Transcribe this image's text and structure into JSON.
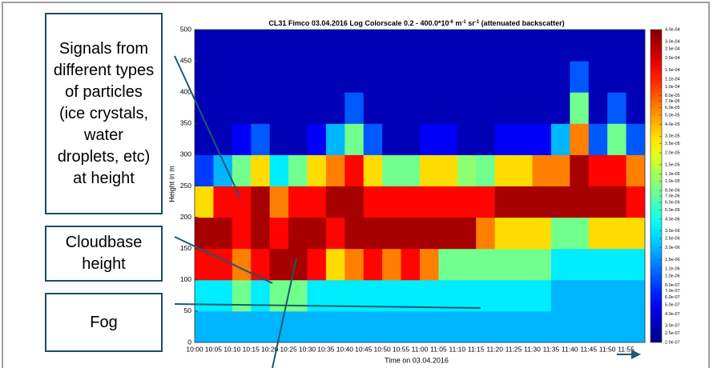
{
  "chart_data": {
    "type": "heatmap",
    "title": [
      "CL31 Fimco  03.04.2016  Log Colorscale 0.2 - 400.0*10",
      "-6",
      " m",
      "-1",
      " sr",
      "-1",
      "  (attenuated backscatter)"
    ],
    "x_label": "Time on 03.04.2016",
    "y_label": "Height in m",
    "categories": [
      "10:00",
      "10:05",
      "10:10",
      "10:15",
      "10:20",
      "10:25",
      "10:30",
      "10:35",
      "10:40",
      "10:45",
      "10:50",
      "10:55",
      "11:00",
      "11:05",
      "11:10",
      "11:15",
      "11:20",
      "11:25",
      "11:30",
      "11:35",
      "11:40",
      "11:45",
      "11:50",
      "11:55"
    ],
    "ybins": [
      0,
      50,
      100,
      150,
      200,
      250,
      300,
      350,
      400,
      450,
      500
    ],
    "ylim": [
      0,
      500
    ],
    "yticks": [
      0,
      50,
      100,
      150,
      200,
      250,
      300,
      350,
      400,
      450,
      500
    ],
    "values": [
      [
        2e-06,
        2e-06,
        2e-06,
        2e-06,
        2e-06,
        2e-06,
        2e-06,
        2e-06,
        2e-06,
        2e-06,
        2e-06,
        2e-06,
        2e-06,
        2e-06,
        2e-06,
        2e-06,
        2e-06,
        2e-06,
        2e-06,
        2e-06,
        2e-06,
        2e-06,
        2e-06,
        2e-06
      ],
      [
        3e-06,
        3e-06,
        8e-06,
        3e-06,
        8e-06,
        8e-06,
        3e-06,
        3e-06,
        3e-06,
        3e-06,
        3e-06,
        3e-06,
        3e-06,
        3e-06,
        3e-06,
        3e-06,
        3e-06,
        3e-06,
        3e-06,
        2e-06,
        2e-06,
        2e-06,
        2e-06,
        2e-06
      ],
      [
        0.00015,
        0.00015,
        6e-05,
        0.00015,
        0.0003,
        0.0003,
        0.00015,
        3e-05,
        6e-05,
        0.00015,
        6e-05,
        0.00015,
        6e-05,
        8e-06,
        8e-06,
        8e-06,
        8e-06,
        8e-06,
        8e-06,
        3e-06,
        3e-06,
        3e-06,
        3e-06,
        3e-06
      ],
      [
        0.0003,
        0.0003,
        0.00015,
        0.0003,
        0.00015,
        0.0003,
        0.0003,
        0.00015,
        0.0003,
        0.0003,
        0.0003,
        0.0003,
        0.0003,
        0.0003,
        0.0003,
        6e-05,
        3e-05,
        3e-05,
        3e-05,
        8e-06,
        8e-06,
        3e-05,
        3e-05,
        3e-05
      ],
      [
        3e-05,
        0.00015,
        0.00015,
        0.0003,
        6e-05,
        0.00015,
        0.00015,
        0.0003,
        0.0003,
        0.00015,
        0.00015,
        0.00015,
        0.00015,
        0.00015,
        0.00015,
        0.00015,
        0.0003,
        0.0003,
        0.0003,
        0.0003,
        0.0003,
        0.0003,
        0.0003,
        0.00015
      ],
      [
        8e-07,
        2e-06,
        8e-06,
        3e-05,
        3e-06,
        8e-06,
        3e-05,
        6e-05,
        0.00015,
        3e-05,
        8e-06,
        8e-06,
        3e-05,
        3e-05,
        1e-05,
        8e-06,
        3e-05,
        3e-05,
        6e-05,
        6e-05,
        0.0003,
        0.00015,
        0.00015,
        6e-05
      ],
      [
        3e-07,
        3e-07,
        5e-07,
        1e-06,
        3e-07,
        3e-07,
        5e-07,
        2e-06,
        8e-06,
        1e-06,
        3e-07,
        3e-07,
        5e-07,
        5e-07,
        3e-07,
        3e-07,
        5e-07,
        5e-07,
        5e-07,
        2e-06,
        6e-05,
        1e-06,
        8e-06,
        1e-06
      ],
      [
        3e-07,
        3e-07,
        3e-07,
        3e-07,
        3e-07,
        3e-07,
        3e-07,
        3e-07,
        1e-06,
        3e-07,
        3e-07,
        3e-07,
        3e-07,
        3e-07,
        3e-07,
        3e-07,
        3e-07,
        3e-07,
        3e-07,
        3e-07,
        8e-06,
        3e-07,
        1e-06,
        3e-07
      ],
      [
        3e-07,
        3e-07,
        3e-07,
        3e-07,
        3e-07,
        3e-07,
        3e-07,
        3e-07,
        3e-07,
        3e-07,
        3e-07,
        3e-07,
        3e-07,
        3e-07,
        3e-07,
        3e-07,
        3e-07,
        3e-07,
        3e-07,
        3e-07,
        1e-06,
        3e-07,
        3e-07,
        3e-07
      ],
      [
        3e-07,
        3e-07,
        3e-07,
        3e-07,
        3e-07,
        3e-07,
        3e-07,
        3e-07,
        3e-07,
        3e-07,
        3e-07,
        3e-07,
        3e-07,
        3e-07,
        3e-07,
        3e-07,
        3e-07,
        3e-07,
        3e-07,
        3e-07,
        3e-07,
        3e-07,
        3e-07,
        3e-07
      ]
    ],
    "log_color": true,
    "clim": [
      2e-07,
      0.0004
    ],
    "cticks": [
      {
        "value": 0.0004,
        "label": "4.0e-04"
      },
      {
        "value": 0.0003,
        "label": "3.0e-04"
      },
      {
        "value": 0.00025,
        "label": "2.5e-04"
      },
      {
        "value": 0.0002,
        "label": "2.0e-04"
      },
      {
        "value": 0.00015,
        "label": "1.5e-04"
      },
      {
        "value": 0.00012,
        "label": "1.2e-04"
      },
      {
        "value": 0.0001,
        "label": "1.0e-04"
      },
      {
        "value": 8e-05,
        "label": "8.0e-05"
      },
      {
        "value": 7e-05,
        "label": "7.0e-05"
      },
      {
        "value": 6e-05,
        "label": "6.0e-05"
      },
      {
        "value": 5e-05,
        "label": "5.0e-05"
      },
      {
        "value": 4e-05,
        "label": "4.0e-05"
      },
      {
        "value": 3e-05,
        "label": "3.0e-05"
      },
      {
        "value": 2.5e-05,
        "label": "2.5e-05"
      },
      {
        "value": 2e-05,
        "label": "2.0e-05"
      },
      {
        "value": 1.5e-05,
        "label": "1.5e-05"
      },
      {
        "value": 1.2e-05,
        "label": "1.2e-05"
      },
      {
        "value": 1e-05,
        "label": "1.0e-05"
      },
      {
        "value": 8e-06,
        "label": "8.0e-06"
      },
      {
        "value": 7e-06,
        "label": "7.0e-06"
      },
      {
        "value": 6e-06,
        "label": "6.0e-06"
      },
      {
        "value": 5e-06,
        "label": "5.0e-06"
      },
      {
        "value": 4e-06,
        "label": "4.0e-06"
      },
      {
        "value": 3e-06,
        "label": "3.0e-06"
      },
      {
        "value": 2.5e-06,
        "label": "2.5e-06"
      },
      {
        "value": 2e-06,
        "label": "2.0e-06"
      },
      {
        "value": 1.5e-06,
        "label": "1.5e-06"
      },
      {
        "value": 1.2e-06,
        "label": "1.2e-06"
      },
      {
        "value": 1e-06,
        "label": "1.0e-06"
      },
      {
        "value": 8e-07,
        "label": "8.0e-07"
      },
      {
        "value": 7e-07,
        "label": "7.0e-07"
      },
      {
        "value": 6e-07,
        "label": "6.0e-07"
      },
      {
        "value": 5e-07,
        "label": "5.0e-07"
      },
      {
        "value": 4e-07,
        "label": "4.0e-07"
      },
      {
        "value": 3e-07,
        "label": "3.0e-07"
      },
      {
        "value": 2.5e-07,
        "label": "2.5e-07"
      },
      {
        "value": 2e-07,
        "label": "2.0e-07"
      }
    ],
    "annotations": [
      {
        "text": "Signals from different types of particles (ice crystals, water droplets, etc) at height"
      },
      {
        "text": "Cloudbase height"
      },
      {
        "text": "Fog"
      }
    ]
  }
}
